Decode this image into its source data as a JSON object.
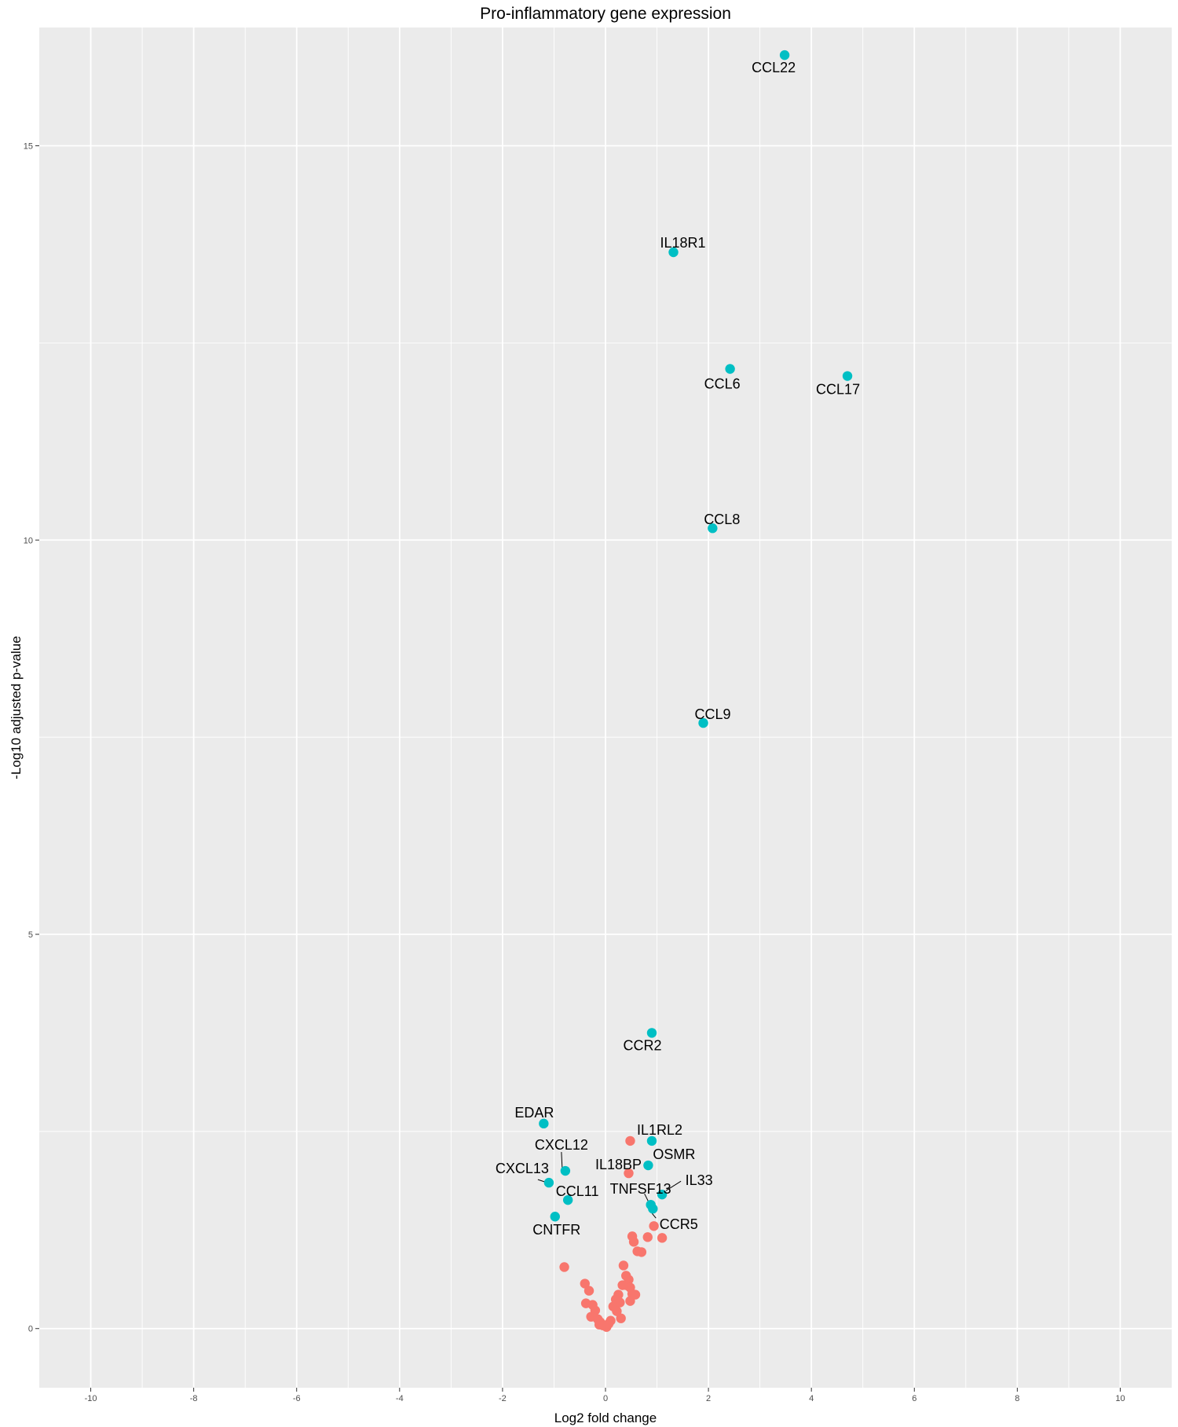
{
  "chart_data": {
    "type": "scatter",
    "title": "Pro-inflammatory gene expression",
    "xlabel": "Log2 fold change",
    "ylabel": "-Log10 adjusted p-value",
    "xlim": [
      -11,
      11
    ],
    "ylim": [
      -0.75,
      16.5
    ],
    "x_ticks": [
      -10,
      -8,
      -6,
      -4,
      -2,
      0,
      2,
      4,
      6,
      8,
      10
    ],
    "y_ticks": [
      0,
      5,
      10,
      15
    ],
    "grid": true,
    "legend": "none",
    "colors": {
      "significant": "#00BFC4",
      "not_significant": "#F8766D",
      "panel_bg": "#EBEBEB",
      "grid": "#FFFFFF"
    },
    "labeled_points": [
      {
        "label": "CCL22",
        "x": 3.48,
        "y": 16.15,
        "group": "significant"
      },
      {
        "label": "IL18R1",
        "x": 1.32,
        "y": 13.65,
        "group": "significant"
      },
      {
        "label": "CCL6",
        "x": 2.42,
        "y": 12.17,
        "group": "significant"
      },
      {
        "label": "CCL17",
        "x": 4.7,
        "y": 12.08,
        "group": "significant"
      },
      {
        "label": "CCL8",
        "x": 2.08,
        "y": 10.15,
        "group": "significant"
      },
      {
        "label": "CCL9",
        "x": 1.9,
        "y": 7.68,
        "group": "significant"
      },
      {
        "label": "CCR2",
        "x": 0.9,
        "y": 3.75,
        "group": "significant"
      },
      {
        "label": "EDAR",
        "x": -1.2,
        "y": 2.6,
        "group": "significant"
      },
      {
        "label": "IL1RL2",
        "x": 0.9,
        "y": 2.38,
        "group": "significant"
      },
      {
        "label": "CXCL12",
        "x": -0.78,
        "y": 2.0,
        "group": "significant"
      },
      {
        "label": "OSMR",
        "x": 0.83,
        "y": 2.07,
        "group": "significant"
      },
      {
        "label": "IL18BP",
        "x": 0.45,
        "y": 1.97,
        "group": "not_significant"
      },
      {
        "label": "CXCL13",
        "x": -1.1,
        "y": 1.85,
        "group": "significant"
      },
      {
        "label": "IL33",
        "x": 1.1,
        "y": 1.7,
        "group": "significant"
      },
      {
        "label": "CCL11",
        "x": -0.73,
        "y": 1.63,
        "group": "significant"
      },
      {
        "label": "TNFSF13",
        "x": 0.88,
        "y": 1.57,
        "group": "significant"
      },
      {
        "label": "CCR5",
        "x": 0.92,
        "y": 1.52,
        "group": "significant"
      },
      {
        "label": "CNTFR",
        "x": -0.98,
        "y": 1.42,
        "group": "significant"
      }
    ],
    "other_points": [
      {
        "x": 0.48,
        "y": 2.38
      },
      {
        "x": 0.94,
        "y": 1.3
      },
      {
        "x": 0.52,
        "y": 1.17
      },
      {
        "x": 0.55,
        "y": 1.1
      },
      {
        "x": 0.82,
        "y": 1.16
      },
      {
        "x": 1.1,
        "y": 1.15
      },
      {
        "x": 0.62,
        "y": 0.98
      },
      {
        "x": 0.7,
        "y": 0.97
      },
      {
        "x": -0.8,
        "y": 0.78
      },
      {
        "x": 0.35,
        "y": 0.8
      },
      {
        "x": 0.4,
        "y": 0.67
      },
      {
        "x": 0.45,
        "y": 0.62
      },
      {
        "x": 0.4,
        "y": 0.55
      },
      {
        "x": 0.48,
        "y": 0.52
      },
      {
        "x": 0.33,
        "y": 0.55
      },
      {
        "x": -0.4,
        "y": 0.57
      },
      {
        "x": -0.32,
        "y": 0.48
      },
      {
        "x": 0.52,
        "y": 0.44
      },
      {
        "x": 0.58,
        "y": 0.43
      },
      {
        "x": 0.25,
        "y": 0.43
      },
      {
        "x": 0.2,
        "y": 0.37
      },
      {
        "x": 0.28,
        "y": 0.33
      },
      {
        "x": 0.48,
        "y": 0.35
      },
      {
        "x": -0.38,
        "y": 0.32
      },
      {
        "x": -0.25,
        "y": 0.3
      },
      {
        "x": 0.15,
        "y": 0.28
      },
      {
        "x": 0.22,
        "y": 0.22
      },
      {
        "x": -0.2,
        "y": 0.23
      },
      {
        "x": -0.28,
        "y": 0.15
      },
      {
        "x": -0.15,
        "y": 0.12
      },
      {
        "x": -0.1,
        "y": 0.08
      },
      {
        "x": 0.1,
        "y": 0.1
      },
      {
        "x": 0.3,
        "y": 0.13
      },
      {
        "x": -0.05,
        "y": 0.04
      },
      {
        "x": 0.02,
        "y": 0.02
      },
      {
        "x": -0.12,
        "y": 0.05
      },
      {
        "x": 0.06,
        "y": 0.06
      }
    ]
  }
}
